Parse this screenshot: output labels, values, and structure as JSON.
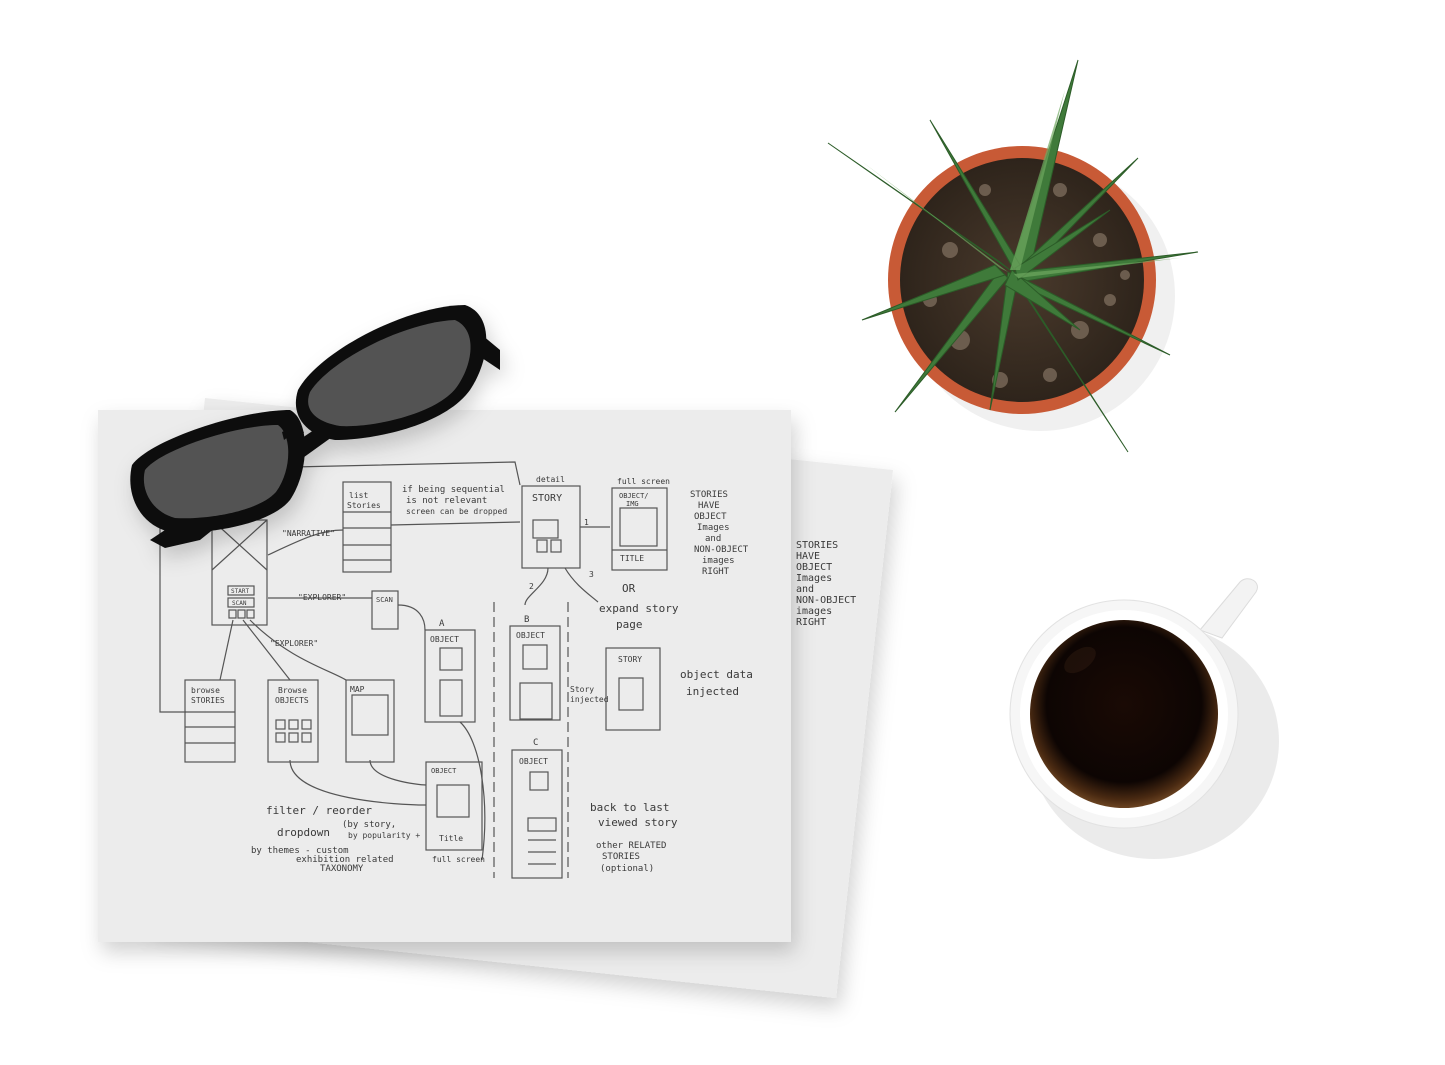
{
  "sketch": {
    "narrative": "\"NARRATIVE\"",
    "explorer_top": "\"EXPLORER\"",
    "explorer_bottom": "\"EXPLORER\"",
    "start": "START",
    "scan_small": "SCAN",
    "list_stories": [
      "list",
      "Stories"
    ],
    "sequential_note": [
      "if being sequential",
      "is not relevant",
      "screen can be dropped"
    ],
    "detail": "detail",
    "story": "STORY",
    "full_screen_top": "full screen",
    "object_img": [
      "OBJECT/",
      "IMG"
    ],
    "title": "TITLE",
    "stories_note": [
      "STORIES",
      "HAVE",
      "OBJECT",
      "Images",
      "and",
      "NON-OBJECT",
      "images",
      "RIGHT"
    ],
    "or": "OR",
    "expand_story": [
      "expand story",
      "page"
    ],
    "scan_box": "SCAN",
    "marker_a": "A",
    "marker_b": "B",
    "marker_c": "C",
    "object": "OBJECT",
    "story_injected": [
      "Story",
      "injected"
    ],
    "object_data": [
      "object data",
      "injected"
    ],
    "browse_stories": [
      "browse",
      "STORIES"
    ],
    "browse_objects": [
      "Browse",
      "OBJECTS"
    ],
    "map": "MAP",
    "title_small": "Title",
    "full_screen_bottom": "full screen",
    "filter_note": [
      "filter / reorder",
      "dropdown",
      "(by story,",
      "by popularity +",
      "by themes - custom",
      "exhibition related",
      "TAXONOMY"
    ],
    "back_to_last": [
      "back to last",
      "viewed story"
    ],
    "other_related": [
      "other RELATED",
      "STORIES",
      "(optional)"
    ],
    "number_1": "1",
    "number_2": "2",
    "number_3": "3"
  }
}
